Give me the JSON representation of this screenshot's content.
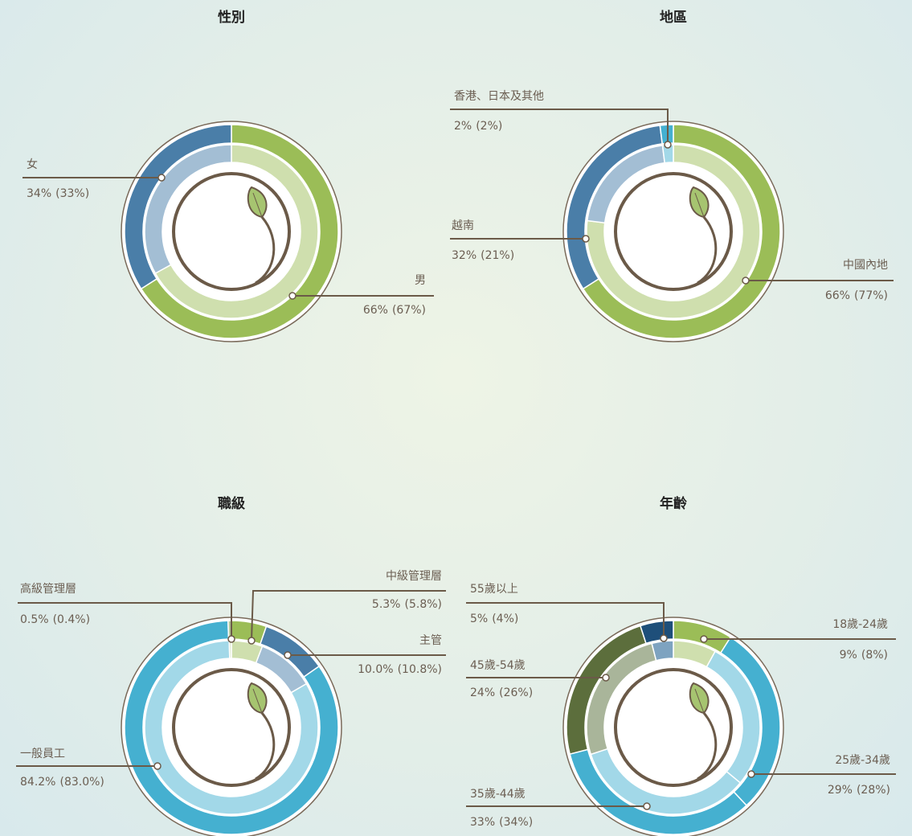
{
  "chart_data": [
    {
      "type": "pie",
      "title": "性別",
      "categories": [
        "男",
        "女"
      ],
      "series": [
        {
          "values": [
            66,
            34
          ],
          "value_labels": [
            "66%",
            "34%"
          ],
          "colors": [
            "#9bbd57",
            "#4a7ea8"
          ]
        },
        {
          "values": [
            67,
            33
          ],
          "value_labels": [
            "(67%)",
            "(33%)"
          ],
          "colors": [
            "#cfdfae",
            "#a3bed4"
          ]
        }
      ]
    },
    {
      "type": "pie",
      "title": "地區",
      "categories": [
        "中國內地",
        "越南",
        "香港、日本及其他"
      ],
      "series": [
        {
          "values": [
            66,
            32,
            2
          ],
          "value_labels": [
            "66%",
            "32%",
            "2%"
          ],
          "colors": [
            "#9bbd57",
            "#4a7ea8",
            "#45b0d0"
          ]
        },
        {
          "values": [
            77,
            21,
            2
          ],
          "value_labels": [
            "(77%)",
            "(21%)",
            "(2%)"
          ],
          "colors": [
            "#cfdfae",
            "#a3bed4",
            "#a2d8e8"
          ]
        }
      ]
    },
    {
      "type": "pie",
      "title": "職級",
      "categories": [
        "中級管理層",
        "主管",
        "一般員工",
        "高級管理層"
      ],
      "series": [
        {
          "values": [
            5.3,
            10.0,
            84.2,
            0.5
          ],
          "value_labels": [
            "5.3%",
            "10.0%",
            "84.2%",
            "0.5%"
          ],
          "colors": [
            "#9bbd57",
            "#4a7ea8",
            "#45b0d0",
            "#b5c79a"
          ]
        },
        {
          "values": [
            5.8,
            10.8,
            83.0,
            0.4
          ],
          "value_labels": [
            "(5.8%)",
            "(10.8%)",
            "(83.0%)",
            "(0.4%)"
          ],
          "colors": [
            "#cfdfae",
            "#a3bed4",
            "#a2d8e8",
            "#dbe6cc"
          ]
        }
      ]
    },
    {
      "type": "pie",
      "title": "年齡",
      "categories": [
        "18歲-24歲",
        "25歲-34歲",
        "35歲-44歲",
        "45歲-54歲",
        "55歲以上"
      ],
      "series": [
        {
          "values": [
            9,
            29,
            33,
            24,
            5
          ],
          "value_labels": [
            "9%",
            "29%",
            "33%",
            "24%",
            "5%"
          ],
          "colors": [
            "#9bbd57",
            "#45b0d0",
            "#45b0d0",
            "#5c6e3c",
            "#1e4f7a"
          ]
        },
        {
          "values": [
            8,
            28,
            34,
            26,
            4
          ],
          "value_labels": [
            "(8%)",
            "(28%)",
            "(34%)",
            "(26%)",
            "(4%)"
          ],
          "colors": [
            "#cfdfae",
            "#a2d8e8",
            "#a2d8e8",
            "#a9b59a",
            "#7ea3c0"
          ]
        }
      ]
    }
  ]
}
